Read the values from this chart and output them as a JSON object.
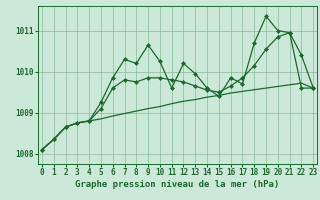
{
  "title": "Graphe pression niveau de la mer (hPa)",
  "bg_color": "#cce8d8",
  "grid_color": "#88bb99",
  "line_color": "#1a6b2a",
  "x_values": [
    0,
    1,
    2,
    3,
    4,
    5,
    6,
    7,
    8,
    9,
    10,
    11,
    12,
    13,
    14,
    15,
    16,
    17,
    18,
    19,
    20,
    21,
    22,
    23
  ],
  "series1": [
    1008.1,
    1008.35,
    1008.65,
    1008.75,
    1008.8,
    1009.25,
    1009.85,
    1010.3,
    1010.2,
    1010.65,
    1010.25,
    1009.6,
    1010.2,
    1009.95,
    1009.6,
    1009.4,
    1009.85,
    1009.7,
    1010.7,
    1011.35,
    1011.0,
    1010.95,
    1010.4,
    1009.6
  ],
  "series2": [
    1008.1,
    1008.35,
    1008.65,
    1008.75,
    1008.8,
    1009.1,
    1009.6,
    1009.8,
    1009.75,
    1009.85,
    1009.85,
    1009.8,
    1009.75,
    1009.65,
    1009.55,
    1009.5,
    1009.65,
    1009.85,
    1010.15,
    1010.55,
    1010.85,
    1010.95,
    1009.6,
    1009.6
  ],
  "series3": [
    1008.1,
    1008.35,
    1008.65,
    1008.75,
    1008.8,
    1008.85,
    1008.92,
    1008.98,
    1009.04,
    1009.1,
    1009.15,
    1009.22,
    1009.28,
    1009.32,
    1009.38,
    1009.42,
    1009.48,
    1009.52,
    1009.56,
    1009.6,
    1009.64,
    1009.68,
    1009.72,
    1009.6
  ],
  "ylim": [
    1007.75,
    1011.6
  ],
  "yticks": [
    1008,
    1009,
    1010,
    1011
  ],
  "xticks": [
    0,
    1,
    2,
    3,
    4,
    5,
    6,
    7,
    8,
    9,
    10,
    11,
    12,
    13,
    14,
    15,
    16,
    17,
    18,
    19,
    20,
    21,
    22,
    23
  ],
  "tick_fontsize": 5.5,
  "title_fontsize": 6.5,
  "linewidth": 0.9,
  "markersize": 2.0
}
